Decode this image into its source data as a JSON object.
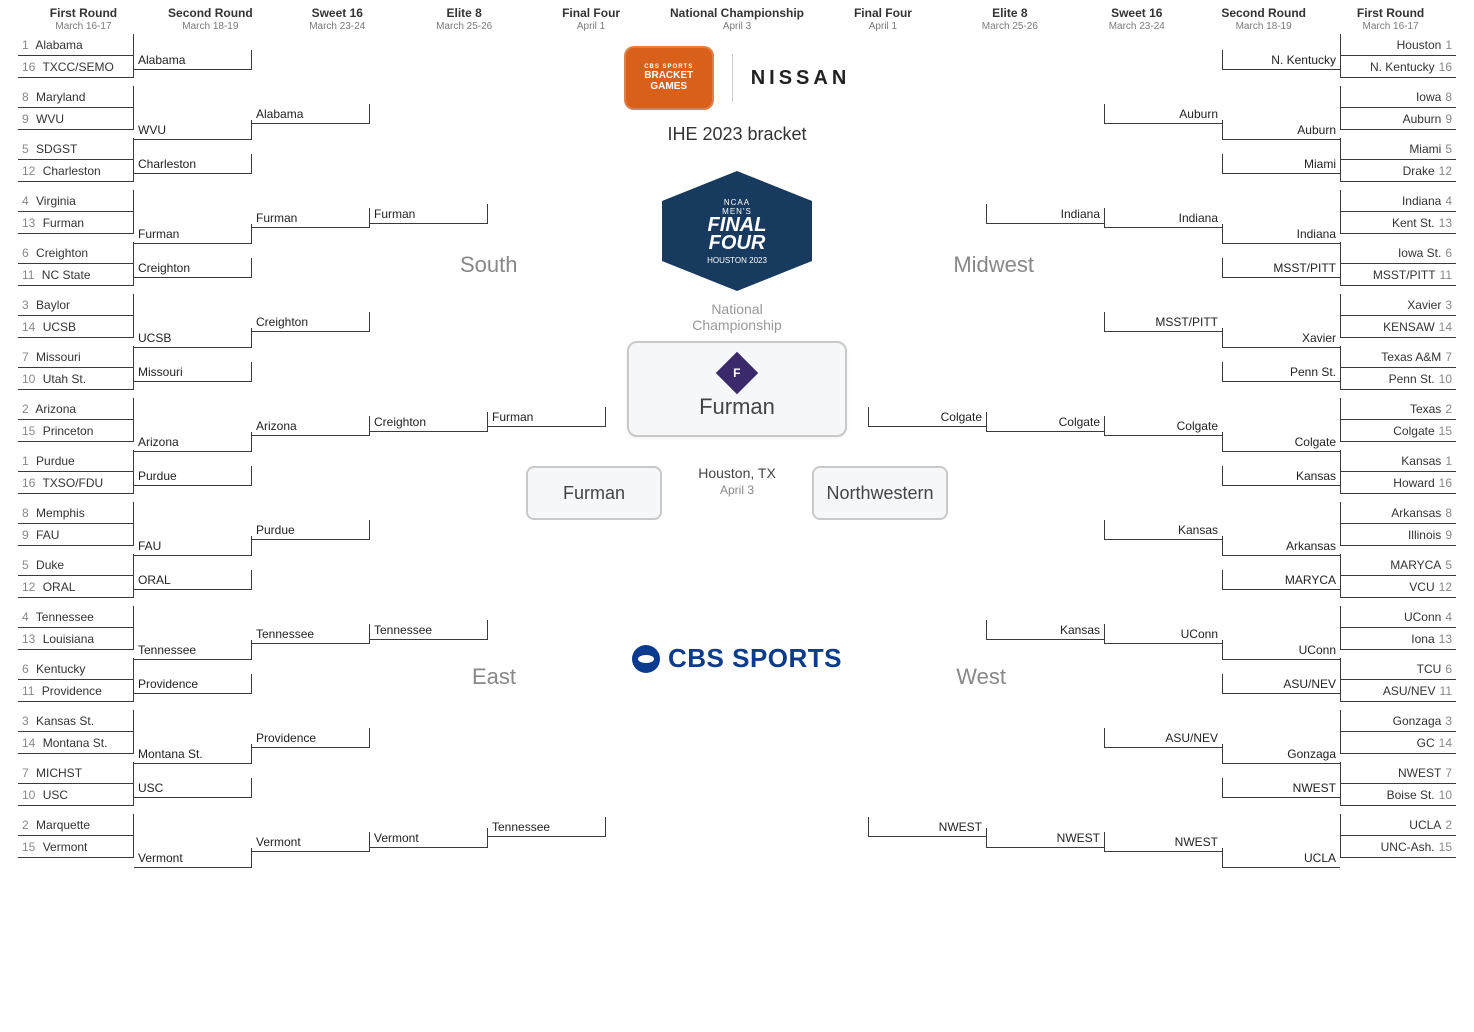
{
  "headers": {
    "left": [
      {
        "title": "First Round",
        "date": "March 16-17"
      },
      {
        "title": "Second Round",
        "date": "March 18-19"
      },
      {
        "title": "Sweet 16",
        "date": "March 23-24"
      },
      {
        "title": "Elite 8",
        "date": "March 25-26"
      },
      {
        "title": "Final Four",
        "date": "April 1"
      }
    ],
    "center": {
      "title": "National Championship",
      "date": "April 3"
    },
    "right": [
      {
        "title": "Final Four",
        "date": "April 1"
      },
      {
        "title": "Elite 8",
        "date": "March 25-26"
      },
      {
        "title": "Sweet 16",
        "date": "March 23-24"
      },
      {
        "title": "Second Round",
        "date": "March 18-19"
      },
      {
        "title": "First Round",
        "date": "March 16-17"
      }
    ]
  },
  "regions": {
    "south": "South",
    "east": "East",
    "midwest": "Midwest",
    "west": "West"
  },
  "sponsor": {
    "badge_top": "CBS SPORTS",
    "badge_main1": "BRACKET",
    "badge_main2": "GAMES",
    "nissan": "NISSAN"
  },
  "title": "IHE 2023 bracket",
  "final_four_badge": {
    "tiny1": "NCAA",
    "tiny2": "MEN'S",
    "big1": "FINAL",
    "big2": "FOUR",
    "sub": "HOUSTON 2023"
  },
  "nc_label": "National\nChampionship",
  "champion": {
    "logo_letter": "F",
    "name": "Furman"
  },
  "ff_left": "Furman",
  "ff_right": "Northwestern",
  "location": {
    "city": "Houston, TX",
    "date": "April 3"
  },
  "cbs": "CBS SPORTS",
  "south": {
    "r1": [
      {
        "s": "1",
        "t": "Alabama"
      },
      {
        "s": "16",
        "t": "TXCC/SEMO"
      },
      {
        "s": "8",
        "t": "Maryland"
      },
      {
        "s": "9",
        "t": "WVU"
      },
      {
        "s": "5",
        "t": "SDGST"
      },
      {
        "s": "12",
        "t": "Charleston"
      },
      {
        "s": "4",
        "t": "Virginia"
      },
      {
        "s": "13",
        "t": "Furman"
      },
      {
        "s": "6",
        "t": "Creighton"
      },
      {
        "s": "11",
        "t": "NC State"
      },
      {
        "s": "3",
        "t": "Baylor"
      },
      {
        "s": "14",
        "t": "UCSB"
      },
      {
        "s": "7",
        "t": "Missouri"
      },
      {
        "s": "10",
        "t": "Utah St."
      },
      {
        "s": "2",
        "t": "Arizona"
      },
      {
        "s": "15",
        "t": "Princeton"
      }
    ],
    "r2": [
      "Alabama",
      "WVU",
      "Charleston",
      "Furman",
      "Creighton",
      "UCSB",
      "Missouri",
      "Arizona"
    ],
    "r3": [
      "Alabama",
      "Furman",
      "Creighton",
      "Arizona"
    ],
    "r4": [
      "Furman",
      "Creighton"
    ],
    "r5": "Furman"
  },
  "east": {
    "r1": [
      {
        "s": "1",
        "t": "Purdue"
      },
      {
        "s": "16",
        "t": "TXSO/FDU"
      },
      {
        "s": "8",
        "t": "Memphis"
      },
      {
        "s": "9",
        "t": "FAU"
      },
      {
        "s": "5",
        "t": "Duke"
      },
      {
        "s": "12",
        "t": "ORAL"
      },
      {
        "s": "4",
        "t": "Tennessee"
      },
      {
        "s": "13",
        "t": "Louisiana"
      },
      {
        "s": "6",
        "t": "Kentucky"
      },
      {
        "s": "11",
        "t": "Providence"
      },
      {
        "s": "3",
        "t": "Kansas St."
      },
      {
        "s": "14",
        "t": "Montana St."
      },
      {
        "s": "7",
        "t": "MICHST"
      },
      {
        "s": "10",
        "t": "USC"
      },
      {
        "s": "2",
        "t": "Marquette"
      },
      {
        "s": "15",
        "t": "Vermont"
      }
    ],
    "r2": [
      "Purdue",
      "FAU",
      "ORAL",
      "Tennessee",
      "Providence",
      "Montana St.",
      "USC",
      "Vermont"
    ],
    "r3": [
      "Purdue",
      "Tennessee",
      "Providence",
      "Vermont"
    ],
    "r4": [
      "Tennessee",
      "Vermont"
    ],
    "r5": "Tennessee"
  },
  "midwest": {
    "r1": [
      {
        "s": "1",
        "t": "Houston"
      },
      {
        "s": "16",
        "t": "N. Kentucky"
      },
      {
        "s": "8",
        "t": "Iowa"
      },
      {
        "s": "9",
        "t": "Auburn"
      },
      {
        "s": "5",
        "t": "Miami"
      },
      {
        "s": "12",
        "t": "Drake"
      },
      {
        "s": "4",
        "t": "Indiana"
      },
      {
        "s": "13",
        "t": "Kent St."
      },
      {
        "s": "6",
        "t": "Iowa St."
      },
      {
        "s": "11",
        "t": "MSST/PITT"
      },
      {
        "s": "3",
        "t": "Xavier"
      },
      {
        "s": "14",
        "t": "KENSAW"
      },
      {
        "s": "7",
        "t": "Texas A&M"
      },
      {
        "s": "10",
        "t": "Penn St."
      },
      {
        "s": "2",
        "t": "Texas"
      },
      {
        "s": "15",
        "t": "Colgate"
      }
    ],
    "r2": [
      "N. Kentucky",
      "Auburn",
      "Miami",
      "Indiana",
      "MSST/PITT",
      "Xavier",
      "Penn St.",
      "Colgate"
    ],
    "r3": [
      "Auburn",
      "Indiana",
      "MSST/PITT",
      "Colgate"
    ],
    "r4": [
      "Indiana",
      "Colgate"
    ],
    "r5": "Colgate"
  },
  "west": {
    "r1": [
      {
        "s": "1",
        "t": "Kansas"
      },
      {
        "s": "16",
        "t": "Howard"
      },
      {
        "s": "8",
        "t": "Arkansas"
      },
      {
        "s": "9",
        "t": "Illinois"
      },
      {
        "s": "5",
        "t": "MARYCA"
      },
      {
        "s": "12",
        "t": "VCU"
      },
      {
        "s": "4",
        "t": "UConn"
      },
      {
        "s": "13",
        "t": "Iona"
      },
      {
        "s": "6",
        "t": "TCU"
      },
      {
        "s": "11",
        "t": "ASU/NEV"
      },
      {
        "s": "3",
        "t": "Gonzaga"
      },
      {
        "s": "14",
        "t": "GC"
      },
      {
        "s": "7",
        "t": "NWEST"
      },
      {
        "s": "10",
        "t": "Boise St."
      },
      {
        "s": "2",
        "t": "UCLA"
      },
      {
        "s": "15",
        "t": "UNC-Ash."
      }
    ],
    "r2": [
      "Kansas",
      "Arkansas",
      "MARYCA",
      "UConn",
      "ASU/NEV",
      "Gonzaga",
      "NWEST",
      "UCLA"
    ],
    "r3": [
      "Kansas",
      "UConn",
      "ASU/NEV",
      "NWEST"
    ],
    "r4": [
      "Kansas",
      "NWEST"
    ],
    "r5": "NWEST"
  },
  "colors": {
    "line": "#3a3a3a",
    "text": "#333333",
    "muted": "#888888",
    "region": "#888888",
    "badge": "#d9601a",
    "ffbadge": "#173a5e",
    "cbs": "#0a3b8c",
    "boxborder": "#c9c9c9",
    "boxbg": "#f5f7f9"
  }
}
